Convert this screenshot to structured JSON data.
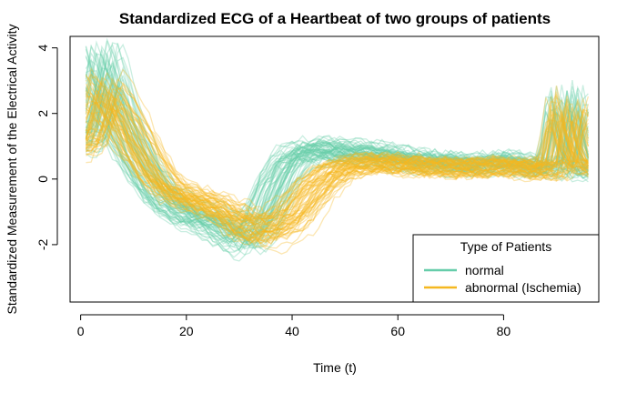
{
  "chart_data": {
    "type": "line",
    "title": "Standardized ECG of a Heartbeat of two groups of patients",
    "xlabel": "Time (t)",
    "ylabel": "Standardized Measurement of the Electrical Activity",
    "xlim": [
      -2,
      98
    ],
    "ylim": [
      -3.75,
      4.35
    ],
    "x_ticks": [
      0,
      20,
      40,
      60,
      80
    ],
    "y_ticks": [
      -2,
      0,
      2,
      4
    ],
    "grid": false,
    "legend": {
      "title": "Type of Patients",
      "position": "bottom-right",
      "entries": [
        {
          "label": "normal",
          "color": "#66CDAA"
        },
        {
          "label": "abnormal (Ischemia)",
          "color": "#F5B820"
        }
      ]
    },
    "x": [
      1,
      4,
      8,
      12,
      16,
      20,
      24,
      28,
      31,
      34,
      37,
      40,
      44,
      48,
      52,
      56,
      60,
      64,
      68,
      72,
      76,
      80,
      84,
      86,
      88,
      90,
      92,
      94,
      96
    ],
    "series": [
      {
        "name": "normal",
        "color": "#66CDAA",
        "curve_count": 60,
        "values": [
          1.2,
          3.5,
          1.5,
          0.2,
          -0.7,
          -1.1,
          -1.3,
          -1.6,
          -1.9,
          -1.4,
          -0.2,
          0.6,
          0.85,
          0.8,
          0.75,
          0.7,
          0.6,
          0.5,
          0.45,
          0.4,
          0.4,
          0.5,
          0.4,
          0.3,
          0.2,
          0.4,
          2.4,
          0.6,
          0.2
        ]
      },
      {
        "name": "abnormal (Ischemia)",
        "color": "#F5B820",
        "curve_count": 60,
        "values": [
          1.0,
          2.6,
          1.8,
          0.6,
          -0.3,
          -0.6,
          -0.8,
          -1.1,
          -1.5,
          -1.6,
          -1.5,
          -1.2,
          -0.4,
          0.2,
          0.4,
          0.45,
          0.4,
          0.35,
          0.3,
          0.3,
          0.3,
          0.35,
          0.3,
          0.25,
          0.2,
          0.3,
          2.2,
          0.9,
          0.3
        ]
      }
    ]
  }
}
